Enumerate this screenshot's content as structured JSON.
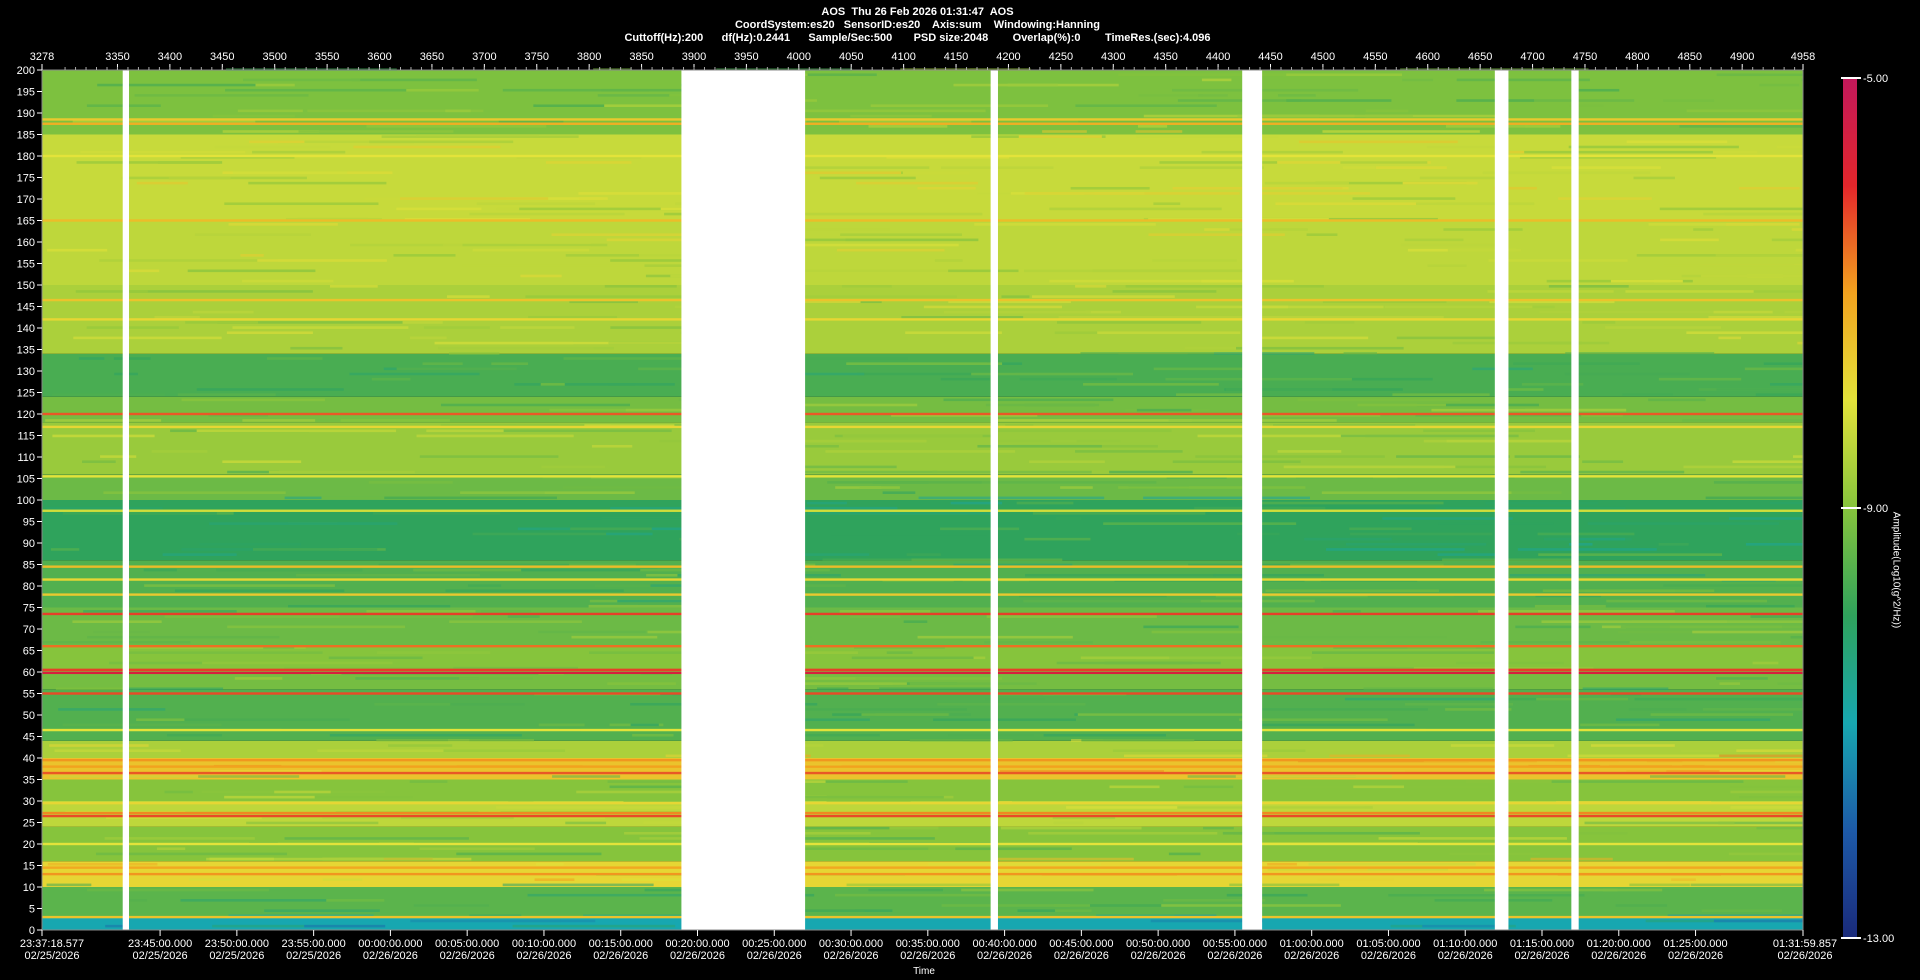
{
  "header": {
    "line1": "AOS  Thu 26 Feb 2026 01:31:47  AOS",
    "line2": "CoordSystem:es20   SensorID:es20    Axis:sum    Windowing:Hanning",
    "line3": "Cuttoff(Hz):200      df(Hz):0.2441      Sample/Sec:500       PSD size:2048        Overlap(%):0        TimeRes.(sec):4.096"
  },
  "chart_data": {
    "type": "heatmap",
    "title": "AOS  Thu 26 Feb 2026 01:31:47  AOS",
    "xlabel": "Time",
    "ylabel": "",
    "colorbar_label": "Amplitude(Log10(g^2/Hz))",
    "colorbar_ticks": [
      "-5.00",
      "-9.00",
      "-13.00"
    ],
    "colorbar_range": [
      -13.0,
      -5.0
    ],
    "ylim": [
      0,
      200
    ],
    "y_ticks": [
      0,
      5,
      10,
      15,
      20,
      25,
      30,
      35,
      40,
      45,
      50,
      55,
      60,
      65,
      70,
      75,
      80,
      85,
      90,
      95,
      100,
      105,
      110,
      115,
      120,
      125,
      130,
      135,
      140,
      145,
      150,
      155,
      160,
      165,
      170,
      175,
      180,
      185,
      190,
      195,
      200
    ],
    "top_axis_range": [
      3278,
      4958
    ],
    "top_ticks": [
      "3278",
      "3350",
      "3400",
      "3450",
      "3500",
      "3550",
      "3600",
      "3650",
      "3700",
      "3750",
      "3800",
      "3850",
      "3900",
      "3950",
      "4000",
      "4050",
      "4100",
      "4150",
      "4200",
      "4250",
      "4300",
      "4350",
      "4400",
      "4450",
      "4500",
      "4550",
      "4600",
      "4650",
      "4700",
      "4750",
      "4800",
      "4850",
      "4900",
      "4958"
    ],
    "time_ticks": [
      {
        "time": "23:37:18.577",
        "date": "02/25/2026"
      },
      {
        "time": "23:45:00.000",
        "date": "02/25/2026"
      },
      {
        "time": "23:50:00.000",
        "date": "02/25/2026"
      },
      {
        "time": "23:55:00.000",
        "date": "02/25/2026"
      },
      {
        "time": "00:00:00.000",
        "date": "02/26/2026"
      },
      {
        "time": "00:05:00.000",
        "date": "02/26/2026"
      },
      {
        "time": "00:10:00.000",
        "date": "02/26/2026"
      },
      {
        "time": "00:15:00.000",
        "date": "02/26/2026"
      },
      {
        "time": "00:20:00.000",
        "date": "02/26/2026"
      },
      {
        "time": "00:25:00.000",
        "date": "02/26/2026"
      },
      {
        "time": "00:30:00.000",
        "date": "02/26/2026"
      },
      {
        "time": "00:35:00.000",
        "date": "02/26/2026"
      },
      {
        "time": "00:40:00.000",
        "date": "02/26/2026"
      },
      {
        "time": "00:45:00.000",
        "date": "02/26/2026"
      },
      {
        "time": "00:50:00.000",
        "date": "02/26/2026"
      },
      {
        "time": "00:55:00.000",
        "date": "02/26/2026"
      },
      {
        "time": "01:00:00.000",
        "date": "02/26/2026"
      },
      {
        "time": "01:05:00.000",
        "date": "02/26/2026"
      },
      {
        "time": "01:10:00.000",
        "date": "02/26/2026"
      },
      {
        "time": "01:15:00.000",
        "date": "02/26/2026"
      },
      {
        "time": "01:20:00.000",
        "date": "02/26/2026"
      },
      {
        "time": "01:25:00.000",
        "date": "02/26/2026"
      },
      {
        "time": "01:31:59.857",
        "date": "02/26/2026"
      }
    ],
    "gaps": [
      {
        "start": 3355,
        "end": 3361
      },
      {
        "start": 3888,
        "end": 4006
      },
      {
        "start": 4183,
        "end": 4190
      },
      {
        "start": 4423,
        "end": 4442
      },
      {
        "start": 4664,
        "end": 4677
      },
      {
        "start": 4737,
        "end": 4744
      }
    ],
    "background_bands": [
      {
        "y0": 0,
        "y1": 3,
        "level": -11.0
      },
      {
        "y0": 3,
        "y1": 10,
        "level": -9.5
      },
      {
        "y0": 10,
        "y1": 16,
        "level": -7.8
      },
      {
        "y0": 16,
        "y1": 24,
        "level": -9.0
      },
      {
        "y0": 24,
        "y1": 30,
        "level": -8.4
      },
      {
        "y0": 30,
        "y1": 35,
        "level": -9.0
      },
      {
        "y0": 35,
        "y1": 40,
        "level": -7.5
      },
      {
        "y0": 40,
        "y1": 44,
        "level": -8.6
      },
      {
        "y0": 44,
        "y1": 56,
        "level": -9.6
      },
      {
        "y0": 56,
        "y1": 60,
        "level": -9.2
      },
      {
        "y0": 60,
        "y1": 66,
        "level": -9.0
      },
      {
        "y0": 66,
        "y1": 75,
        "level": -9.3
      },
      {
        "y0": 75,
        "y1": 86,
        "level": -9.6
      },
      {
        "y0": 86,
        "y1": 100,
        "level": -10.0
      },
      {
        "y0": 100,
        "y1": 106,
        "level": -9.3
      },
      {
        "y0": 106,
        "y1": 118,
        "level": -8.8
      },
      {
        "y0": 118,
        "y1": 124,
        "level": -9.2
      },
      {
        "y0": 124,
        "y1": 134,
        "level": -9.7
      },
      {
        "y0": 134,
        "y1": 150,
        "level": -8.6
      },
      {
        "y0": 150,
        "y1": 165,
        "level": -8.4
      },
      {
        "y0": 165,
        "y1": 185,
        "level": -8.3
      },
      {
        "y0": 185,
        "y1": 200,
        "level": -9.1
      }
    ],
    "lines": [
      {
        "freq": 3,
        "level": -7.5
      },
      {
        "freq": 13,
        "level": -6.9
      },
      {
        "freq": 14.5,
        "level": -7.1
      },
      {
        "freq": 20,
        "level": -8.0
      },
      {
        "freq": 26.5,
        "level": -6.3
      },
      {
        "freq": 27.2,
        "level": -6.8
      },
      {
        "freq": 29.5,
        "level": -7.8
      },
      {
        "freq": 36.5,
        "level": -6.4
      },
      {
        "freq": 38,
        "level": -7.0
      },
      {
        "freq": 39.5,
        "level": -6.9
      },
      {
        "freq": 46.5,
        "level": -8.0
      },
      {
        "freq": 55,
        "level": -6.3
      },
      {
        "freq": 59.8,
        "level": -5.6
      },
      {
        "freq": 60.5,
        "level": -6.2
      },
      {
        "freq": 66,
        "level": -6.6
      },
      {
        "freq": 73.5,
        "level": -6.2
      },
      {
        "freq": 78,
        "level": -7.6
      },
      {
        "freq": 81.5,
        "level": -7.8
      },
      {
        "freq": 84.5,
        "level": -7.4
      },
      {
        "freq": 97.5,
        "level": -8.2
      },
      {
        "freq": 105.5,
        "level": -8.0
      },
      {
        "freq": 117,
        "level": -7.8
      },
      {
        "freq": 120,
        "level": -6.4
      },
      {
        "freq": 142,
        "level": -7.8
      },
      {
        "freq": 146.5,
        "level": -7.5
      },
      {
        "freq": 165,
        "level": -7.4
      },
      {
        "freq": 180,
        "level": -8.0
      },
      {
        "freq": 187.5,
        "level": -7.2
      },
      {
        "freq": 188.5,
        "level": -7.6
      }
    ],
    "grid": false,
    "legend": "right"
  },
  "colors": {
    "background": "#000000",
    "gap": "#ffffff",
    "colormap": [
      "#1a2a7a",
      "#1d5aa8",
      "#17a7b0",
      "#2fa35c",
      "#86c43c",
      "#e3e33a",
      "#f2a21e",
      "#e3262b",
      "#c2185b"
    ]
  }
}
